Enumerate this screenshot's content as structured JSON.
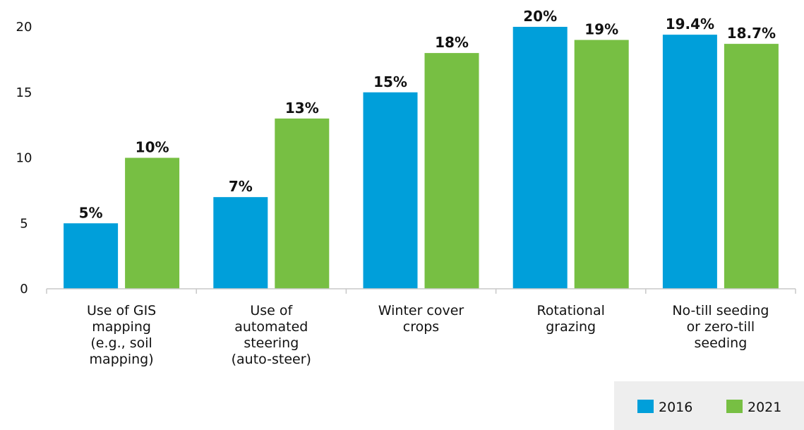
{
  "chart_data": {
    "type": "bar",
    "categories": [
      [
        "Use of GIS",
        "mapping",
        "(e.g., soil",
        "mapping)"
      ],
      [
        "Use of",
        "automated",
        "steering",
        "(auto-steer)"
      ],
      [
        "Winter cover",
        "crops"
      ],
      [
        "Rotational",
        "grazing"
      ],
      [
        "No-till seeding",
        "or zero-till",
        "seeding"
      ]
    ],
    "series": [
      {
        "name": "2016",
        "color": "#009FDA",
        "values": [
          5,
          7,
          15,
          20,
          19.4
        ],
        "labels": [
          "5%",
          "7%",
          "15%",
          "20%",
          "19.4%"
        ]
      },
      {
        "name": "2021",
        "color": "#77BF43",
        "values": [
          10,
          13,
          18,
          19,
          18.7
        ],
        "labels": [
          "10%",
          "13%",
          "18%",
          "19%",
          "18.7%"
        ]
      }
    ],
    "ylim": [
      0,
      20
    ],
    "yticks": [
      0,
      5,
      10,
      15,
      20
    ],
    "grid": false,
    "legend_position": "bottom-right"
  }
}
